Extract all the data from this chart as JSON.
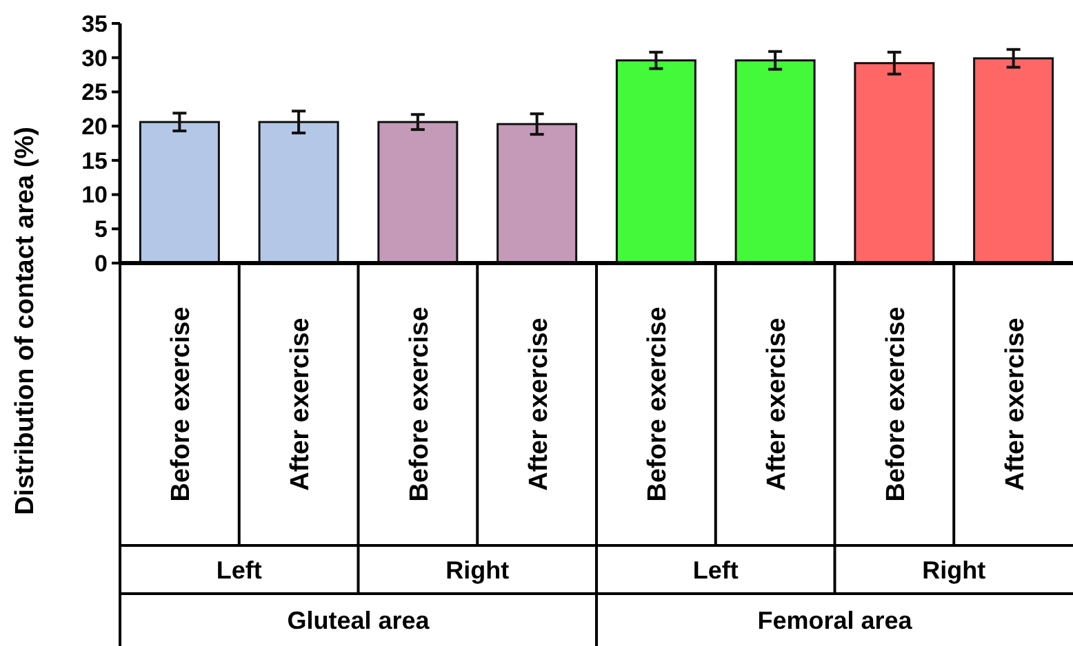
{
  "chart_data": {
    "type": "bar",
    "ylabel": "Distribution of contact area (%)",
    "categories": [
      "Before exercise",
      "After exercise",
      "Before exercise",
      "After exercise",
      "Before exercise",
      "After exercise",
      "Before exercise",
      "After exercise"
    ],
    "values": [
      20.6,
      20.6,
      20.6,
      20.3,
      29.6,
      29.6,
      29.2,
      29.9
    ],
    "errors": [
      1.3,
      1.6,
      1.1,
      1.5,
      1.2,
      1.3,
      1.6,
      1.3
    ],
    "colors": [
      "#b4c7e7",
      "#b4c7e7",
      "#c49ab8",
      "#c49ab8",
      "#44f83a",
      "#44f83a",
      "#ff6666",
      "#ff6666"
    ],
    "annotations": [
      "Left",
      "Right",
      "Left",
      "Right",
      "Gluteal area",
      "Femoral area"
    ],
    "ylim": [
      0,
      35
    ],
    "yticks": [
      0,
      5,
      10,
      15,
      20,
      25,
      30,
      35
    ]
  }
}
